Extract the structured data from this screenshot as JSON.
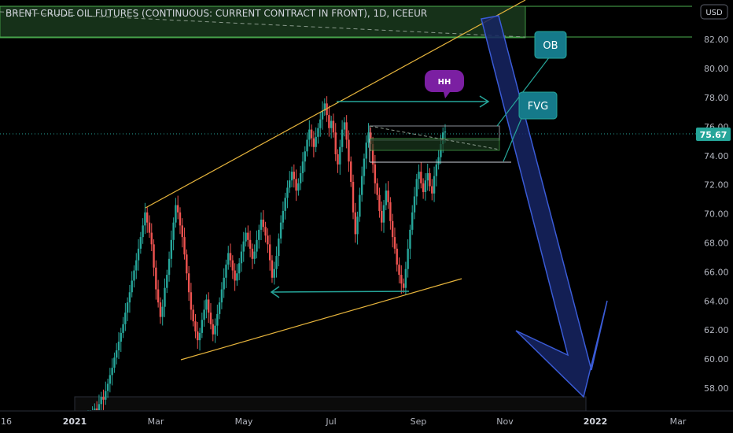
{
  "instrument": {
    "title": "BRENT CRUDE OIL FUTURES (CONTINUOUS: CURRENT CONTRACT IN FRONT), 1D, ICEEUR"
  },
  "currency": "USD",
  "last_price": "75.67",
  "annotations": {
    "ob": "OB",
    "fvg": "FVG",
    "hh": "HH"
  },
  "price_axis": [
    "82.00",
    "80.00",
    "78.00",
    "76.00",
    "74.00",
    "72.00",
    "70.00",
    "68.00",
    "66.00",
    "64.00",
    "62.00",
    "60.00",
    "58.00"
  ],
  "time_axis": [
    {
      "label": "16",
      "bold": false
    },
    {
      "label": "2021",
      "bold": true
    },
    {
      "label": "Mar",
      "bold": false
    },
    {
      "label": "May",
      "bold": false
    },
    {
      "label": "Jul",
      "bold": false
    },
    {
      "label": "Sep",
      "bold": false
    },
    {
      "label": "Nov",
      "bold": false
    },
    {
      "label": "2022",
      "bold": true
    },
    {
      "label": "Mar",
      "bold": false
    }
  ],
  "colors": {
    "up_candle": "#26a69a",
    "down_candle": "#ef5350",
    "trendline": "#e6b43c",
    "teal": "#26a69a",
    "arrow_fill": "#1a2a6c",
    "arrow_stroke": "#3a5bd6",
    "ob_fvg_box": "#157a8a",
    "hh_bubble": "#7b1fa2",
    "supply_zone": "#1b3a1e"
  },
  "chart_data": {
    "type": "candlestick",
    "title": "BRENT CRUDE OIL FUTURES (CONTINUOUS: CURRENT CONTRACT IN FRONT), 1D, ICEEUR",
    "ylim": [
      56.5,
      83.5
    ],
    "last_price": 75.67,
    "x_ticks": [
      "16",
      "2021",
      "Mar",
      "May",
      "Jul",
      "Sep",
      "Nov",
      "2022",
      "Mar"
    ],
    "y_ticks": [
      58,
      60,
      62,
      64,
      66,
      68,
      70,
      72,
      74,
      76,
      78,
      80,
      82
    ],
    "closes": [
      55.2,
      55.8,
      56.1,
      56.6,
      56.3,
      56.9,
      57.4,
      57.2,
      57.8,
      58.3,
      58.9,
      59.4,
      60.1,
      60.6,
      61.2,
      61.8,
      62.4,
      63.2,
      63.9,
      64.6,
      65.4,
      66.1,
      66.8,
      67.6,
      68.4,
      69.2,
      70.1,
      69.4,
      68.7,
      67.9,
      66.3,
      64.8,
      63.9,
      62.9,
      63.6,
      64.9,
      65.8,
      66.9,
      68.2,
      69.4,
      70.6,
      70.1,
      69.2,
      68.4,
      67.2,
      65.9,
      64.6,
      63.4,
      62.6,
      61.9,
      61.3,
      61.8,
      62.7,
      63.4,
      64.1,
      63.2,
      62.4,
      61.7,
      62.3,
      63.1,
      63.9,
      64.8,
      65.6,
      66.5,
      67.3,
      66.8,
      66.1,
      65.4,
      65.9,
      66.6,
      67.4,
      68.1,
      68.7,
      68.2,
      67.6,
      66.9,
      67.4,
      68.2,
      68.9,
      69.6,
      69.1,
      68.5,
      67.9,
      66.8,
      65.6,
      66.2,
      67.1,
      68.3,
      69.4,
      70.2,
      71.1,
      71.8,
      72.3,
      72.9,
      72.4,
      71.6,
      72.1,
      72.8,
      73.6,
      74.3,
      75.1,
      75.8,
      75.2,
      74.6,
      75.3,
      75.9,
      76.5,
      77.1,
      77.6,
      76.8,
      75.9,
      76.4,
      75.6,
      74.1,
      73.4,
      74.6,
      75.8,
      76.3,
      75.1,
      73.6,
      72.2,
      70.1,
      68.6,
      69.8,
      71.3,
      72.6,
      73.8,
      74.9,
      75.6,
      74.8,
      73.4,
      72.1,
      71.3,
      70.2,
      69.4,
      70.6,
      71.6,
      70.8,
      69.5,
      68.4,
      67.6,
      66.5,
      65.8,
      65.2,
      64.9,
      66.2,
      67.6,
      68.9,
      70.1,
      71.2,
      72.4,
      72.9,
      72.1,
      71.5,
      72.3,
      72.8,
      71.9,
      71.4,
      72.6,
      73.4,
      73.9,
      74.8,
      75.6,
      75.67
    ],
    "annotations": [
      "OB",
      "FVG",
      "HH"
    ]
  }
}
